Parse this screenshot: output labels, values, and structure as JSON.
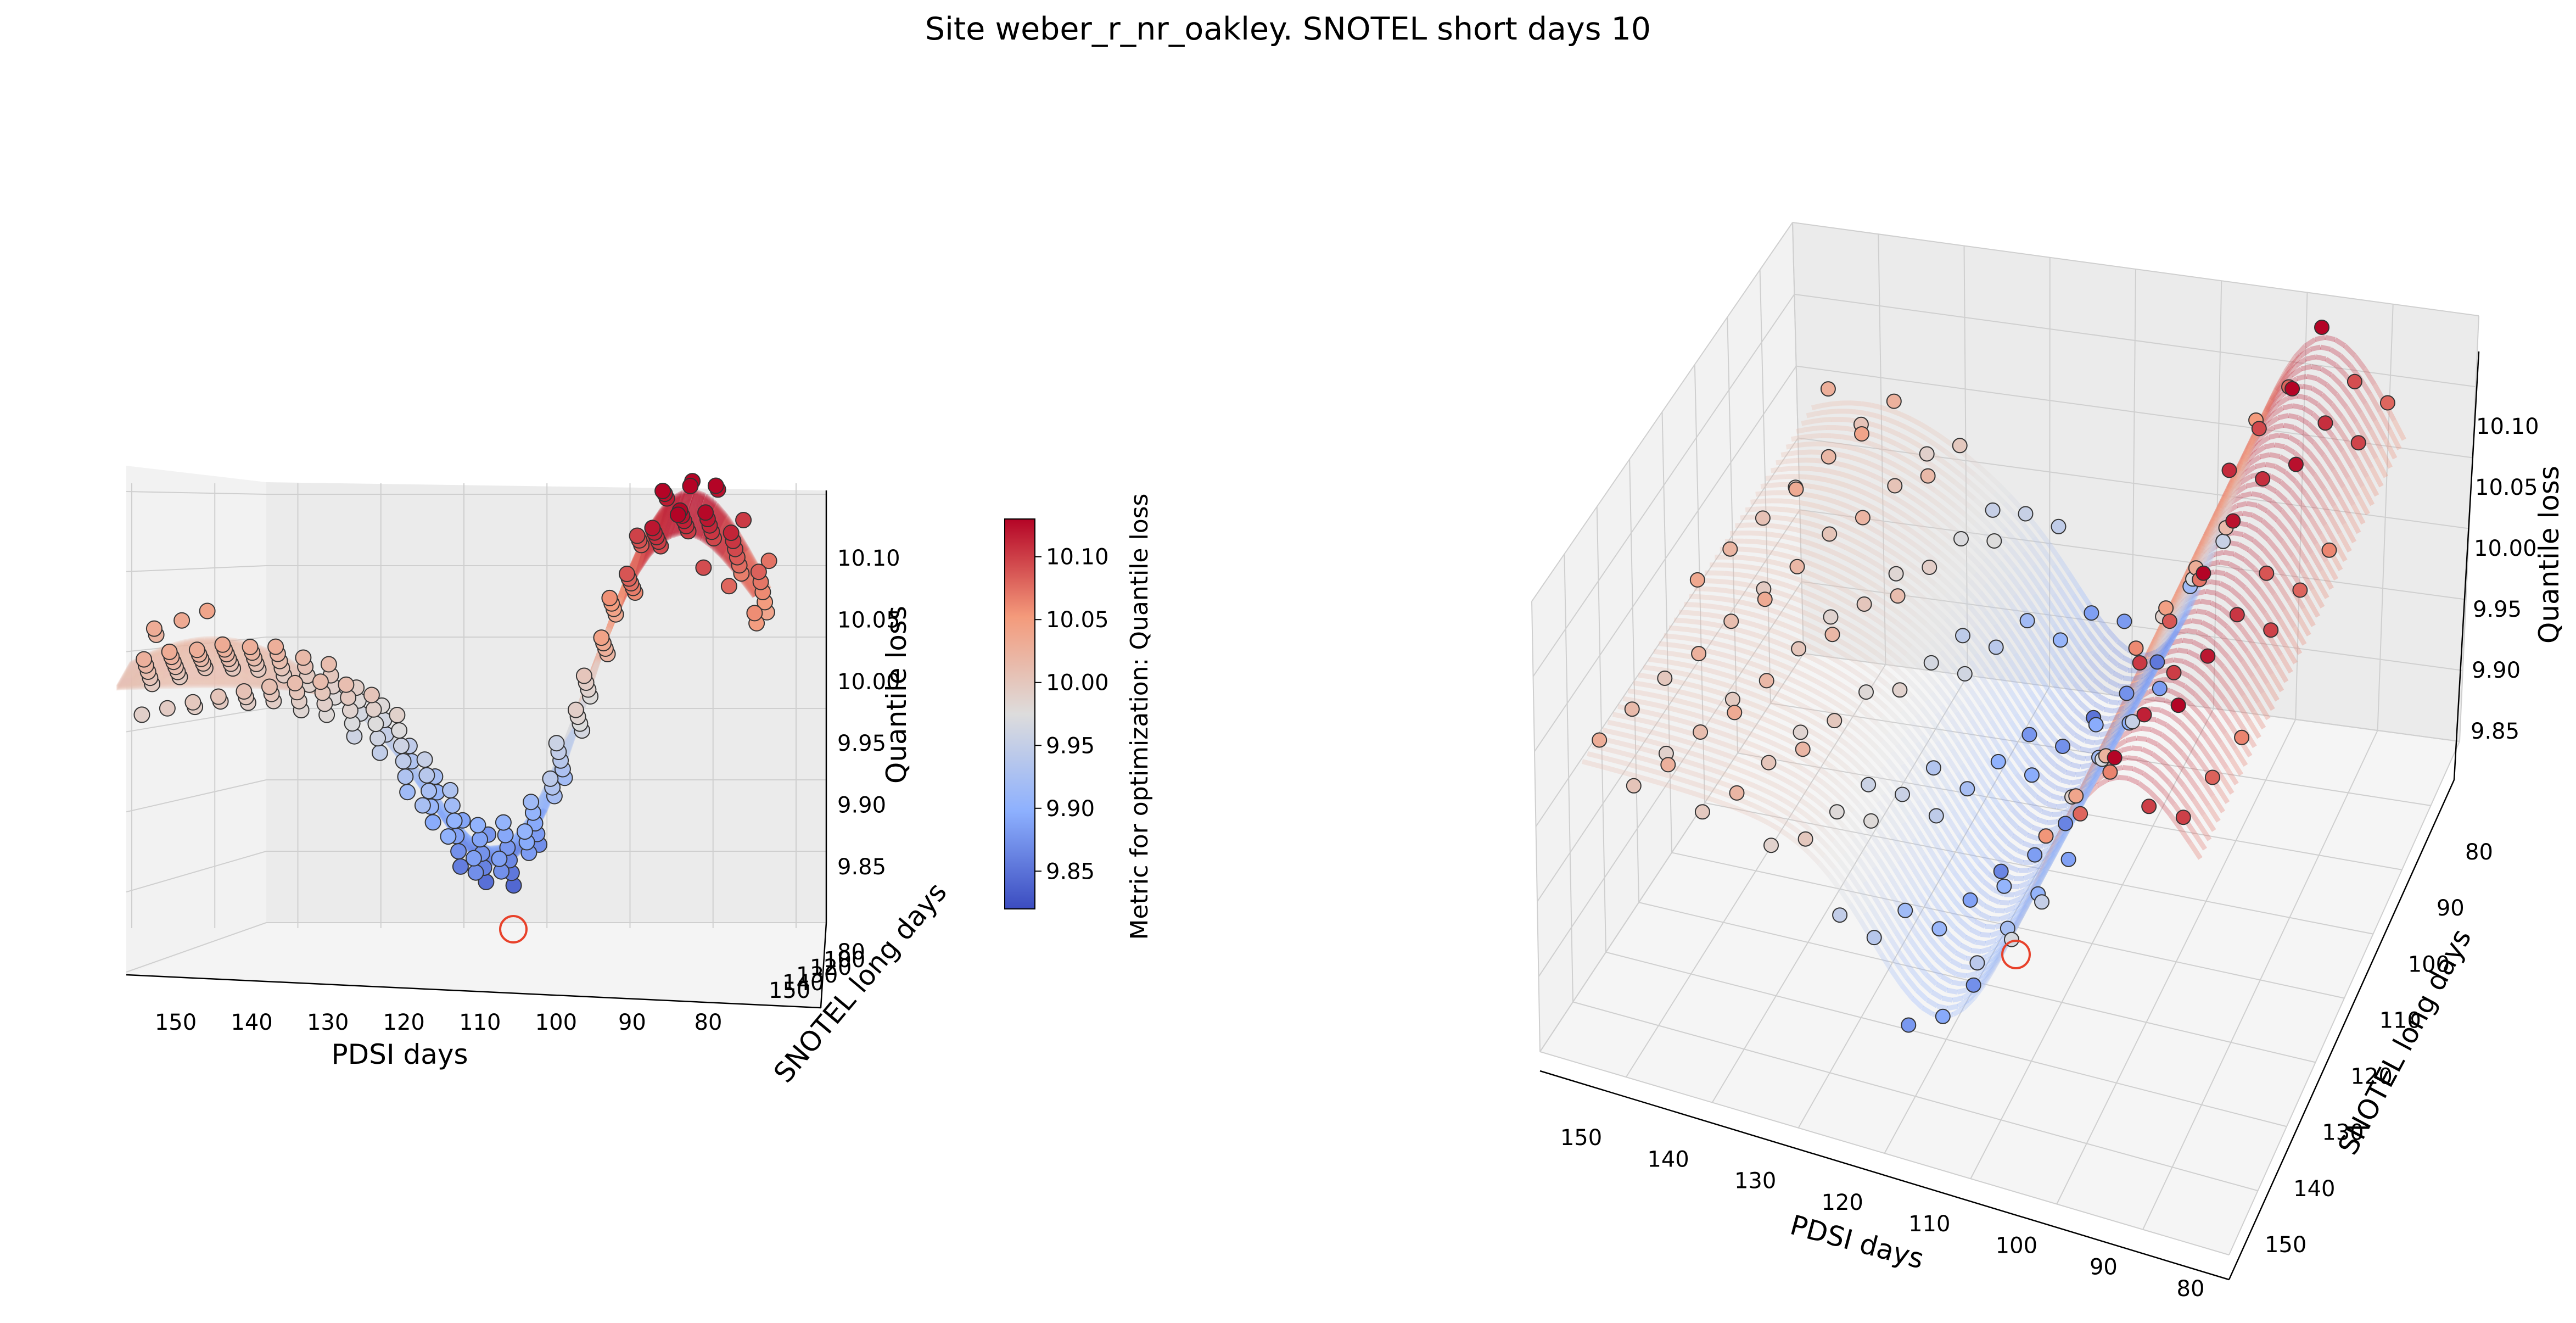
{
  "figure": {
    "title": "Site weber_r_nr_oakley. SNOTEL short days 10"
  },
  "chart_data": [
    {
      "type": "scatter3d-surface",
      "view": "front",
      "xlabel": "PDSI days",
      "ylabel": "SNOTEL long days",
      "zlabel": "Quantile loss",
      "x_ticks": [
        "150",
        "140",
        "130",
        "120",
        "110",
        "100",
        "90",
        "80"
      ],
      "y_ticks": [
        "80",
        "100",
        "120",
        "130",
        "140",
        "150"
      ],
      "z_ticks": [
        "9.85",
        "9.90",
        "9.95",
        "10.00",
        "10.05",
        "10.10"
      ],
      "xlim": [
        75,
        155
      ],
      "ylim": [
        75,
        155
      ],
      "zlim": [
        9.8,
        10.13
      ],
      "grid": true,
      "surface": "smooth fitted surface colored by quantile loss",
      "colormap": "coolwarm",
      "best_point_marker": {
        "color": "#e8412a",
        "pdsi_days": 108,
        "snotel_long_days": 97,
        "loss": 9.82
      }
    },
    {
      "type": "scatter3d-surface",
      "view": "elevated",
      "xlabel": "PDSI days",
      "ylabel": "SNOTEL long days",
      "zlabel": "Quantile loss",
      "x_ticks": [
        "150",
        "140",
        "130",
        "120",
        "110",
        "100",
        "90",
        "80"
      ],
      "y_ticks": [
        "80",
        "90",
        "100",
        "110",
        "120",
        "130",
        "140",
        "150"
      ],
      "z_ticks": [
        "9.85",
        "9.90",
        "9.95",
        "10.00",
        "10.05",
        "10.10"
      ],
      "xlim": [
        75,
        155
      ],
      "ylim": [
        75,
        155
      ],
      "zlim": [
        9.8,
        10.13
      ],
      "grid": true,
      "surface": "smooth fitted surface colored by quantile loss",
      "colormap": "coolwarm",
      "best_point_marker": {
        "color": "#e8412a",
        "pdsi_days": 108,
        "snotel_long_days": 97,
        "loss": 9.82
      }
    }
  ],
  "colorbar": {
    "label": "Metric for optimization: Quantile loss",
    "ticks": [
      "9.85",
      "9.90",
      "9.95",
      "10.00",
      "10.05",
      "10.10"
    ],
    "range": [
      9.82,
      10.13
    ],
    "colormap": "coolwarm"
  }
}
